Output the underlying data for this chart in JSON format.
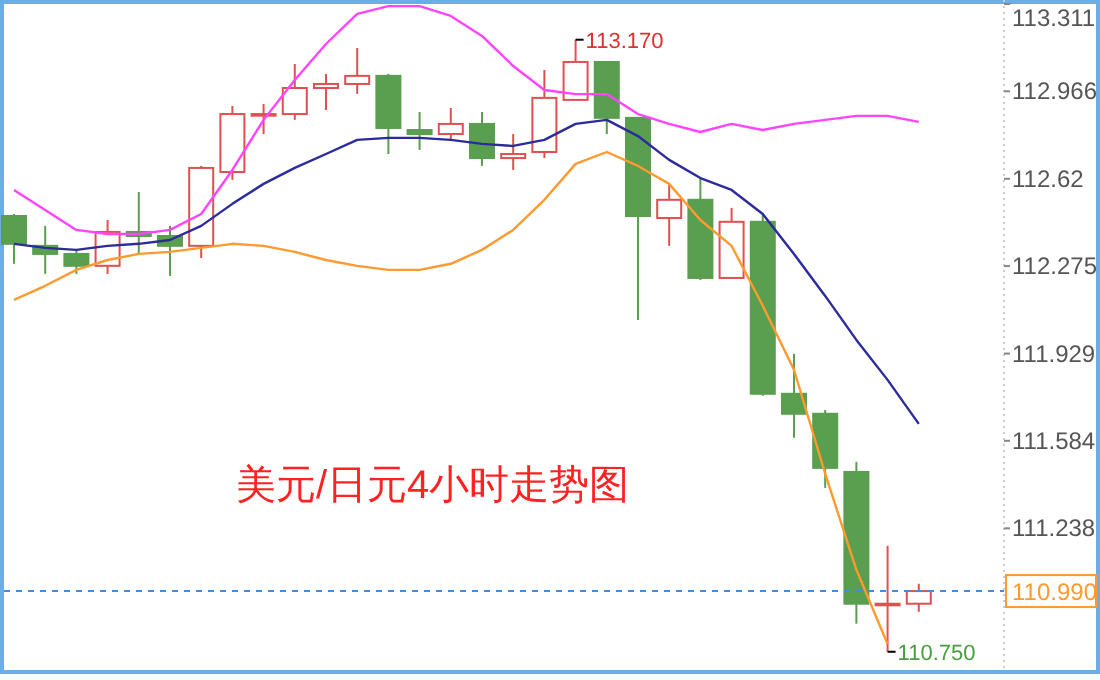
{
  "chart_data": {
    "type": "candlestick",
    "title": "美元/日元4小时走势图",
    "categories": [
      null,
      null,
      null,
      null,
      null,
      null,
      null,
      null,
      null,
      null,
      null,
      null,
      null,
      null,
      null,
      null,
      null,
      null,
      null,
      null,
      null,
      null,
      null,
      null,
      null,
      null,
      null,
      null,
      null,
      null
    ],
    "ohlc": [
      [
        112.473,
        112.481,
        112.284,
        112.363
      ],
      [
        112.355,
        112.434,
        112.244,
        112.323
      ],
      [
        112.323,
        112.339,
        112.244,
        112.276
      ],
      [
        112.276,
        112.457,
        112.244,
        112.41
      ],
      [
        112.41,
        112.568,
        112.323,
        112.394
      ],
      [
        112.394,
        112.434,
        112.236,
        112.355
      ],
      [
        112.355,
        112.671,
        112.307,
        112.663
      ],
      [
        112.647,
        112.908,
        112.616,
        112.876
      ],
      [
        112.876,
        112.916,
        112.797,
        112.876
      ],
      [
        112.876,
        113.074,
        112.853,
        112.979
      ],
      [
        112.979,
        113.035,
        112.892,
        112.995
      ],
      [
        112.995,
        113.137,
        112.956,
        113.027
      ],
      [
        113.027,
        113.035,
        112.718,
        112.821
      ],
      [
        112.813,
        112.884,
        112.734,
        112.797
      ],
      [
        112.797,
        112.9,
        112.774,
        112.837
      ],
      [
        112.837,
        112.884,
        112.671,
        112.702
      ],
      [
        112.702,
        112.797,
        112.655,
        112.718
      ],
      [
        112.726,
        113.05,
        112.702,
        112.94
      ],
      [
        112.932,
        113.17,
        112.932,
        113.082
      ],
      [
        113.082,
        113.082,
        112.797,
        112.861
      ],
      [
        112.861,
        112.861,
        112.062,
        112.473
      ],
      [
        112.465,
        112.6,
        112.355,
        112.537
      ],
      [
        112.537,
        112.623,
        112.22,
        112.228
      ],
      [
        112.228,
        112.505,
        112.228,
        112.45
      ],
      [
        112.45,
        112.481,
        111.762,
        111.77
      ],
      [
        111.77,
        111.928,
        111.596,
        111.691
      ],
      [
        111.691,
        111.706,
        111.398,
        111.477
      ],
      [
        111.461,
        111.501,
        110.861,
        110.94
      ],
      [
        110.94,
        111.169,
        110.75,
        110.94
      ],
      [
        110.94,
        111.019,
        110.908,
        110.99
      ]
    ],
    "series": [
      {
        "type": "line",
        "color": "#ff44ff",
        "values": [
          112.576,
          112.497,
          112.418,
          112.402,
          112.402,
          112.418,
          112.481,
          112.655,
          112.853,
          113.011,
          113.153,
          113.272,
          113.303,
          113.303,
          113.264,
          113.185,
          113.066,
          112.971,
          112.955,
          112.955,
          112.876,
          112.837,
          112.805,
          112.837,
          112.813,
          112.837,
          112.853,
          112.869,
          112.869,
          112.845
        ]
      },
      {
        "type": "line",
        "color": "#2b2b9c",
        "values": [
          112.363,
          112.347,
          112.339,
          112.355,
          112.363,
          112.378,
          112.434,
          112.521,
          112.6,
          112.663,
          112.718,
          112.774,
          112.782,
          112.782,
          112.774,
          112.758,
          112.75,
          112.774,
          112.837,
          112.853,
          112.789,
          112.695,
          112.623,
          112.576,
          112.481,
          112.323,
          112.157,
          111.983,
          111.825,
          111.651
        ]
      },
      {
        "type": "line",
        "color": "#ff9a2e",
        "values": [
          112.141,
          112.197,
          112.26,
          112.299,
          112.323,
          112.331,
          112.347,
          112.363,
          112.355,
          112.331,
          112.299,
          112.276,
          112.26,
          112.26,
          112.284,
          112.339,
          112.418,
          112.537,
          112.679,
          112.726,
          112.671,
          112.6,
          112.457,
          112.355,
          112.118,
          111.865,
          111.454,
          111.074,
          110.781,
          null
        ]
      }
    ],
    "ylim": [
      110.67,
      113.327
    ],
    "yticks": [
      113.311,
      112.966,
      112.62,
      112.275,
      111.929,
      111.584,
      111.238
    ],
    "ref_lines": [
      {
        "axis": "y",
        "value": 110.99,
        "label": "110.990",
        "color": "#3a8ee6",
        "line_style": "dashed"
      }
    ],
    "annotations": [
      "113.170",
      "110.750"
    ],
    "grid": false
  }
}
